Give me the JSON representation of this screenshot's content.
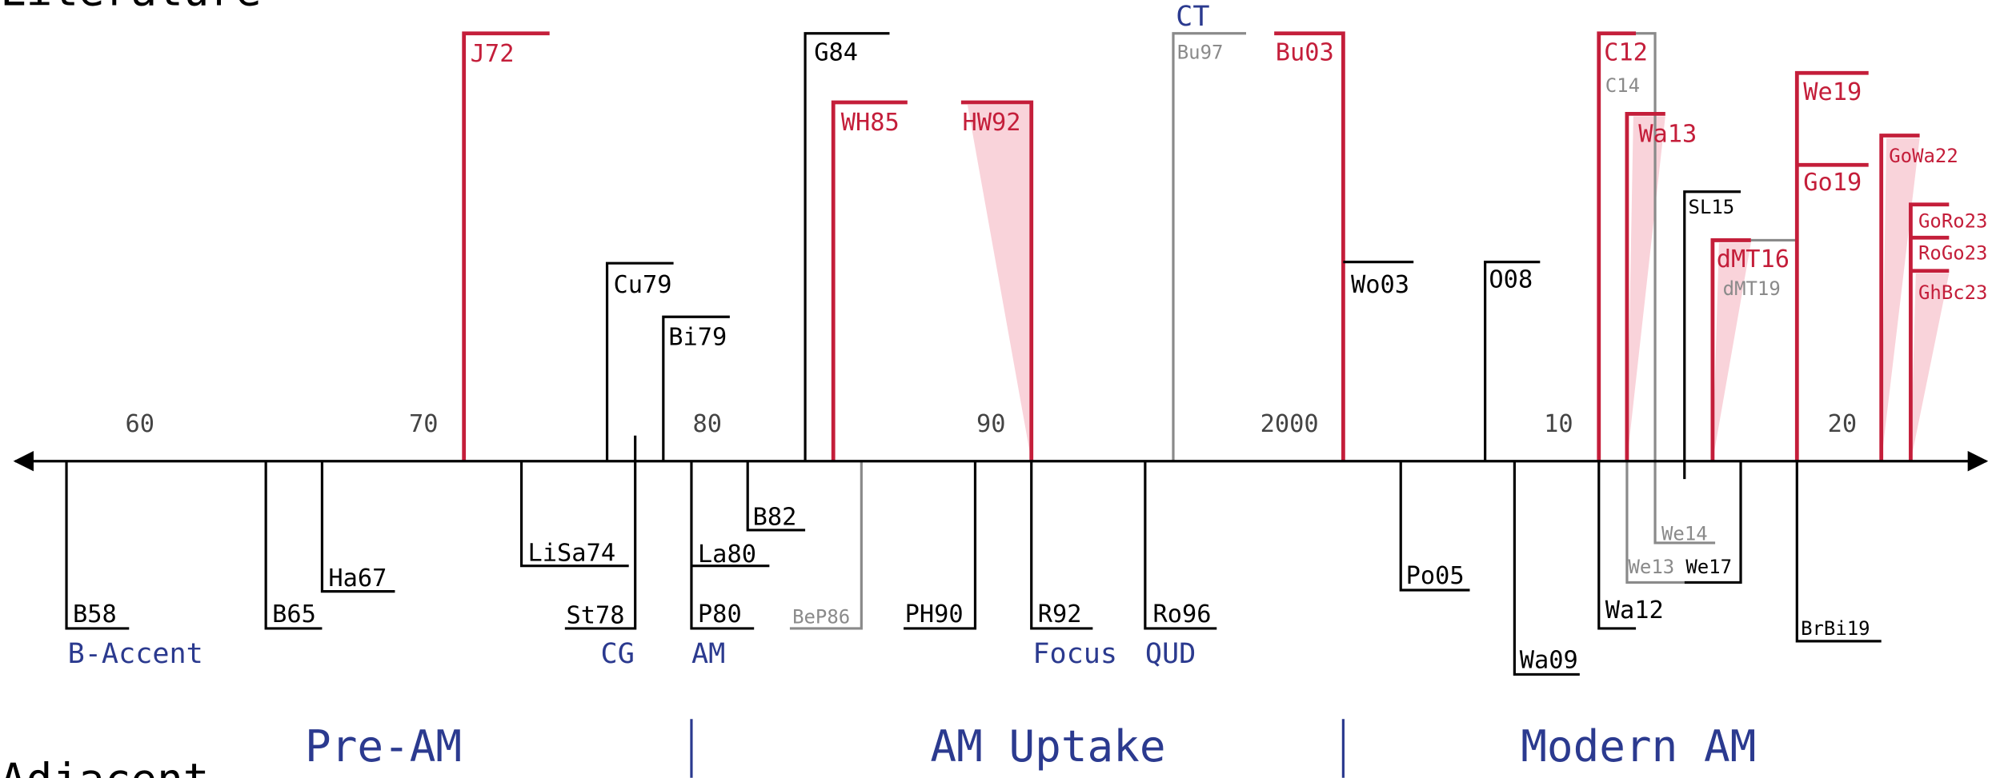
{
  "sections": {
    "top": "Literature",
    "bottom": "Adjacent"
  },
  "axis_labels": [
    "60",
    "70",
    "80",
    "90",
    "2000",
    "10",
    "20"
  ],
  "above": [
    "J72",
    "Cu79",
    "Bi79",
    "G84",
    "WH85",
    "HW92",
    "Bu97",
    "Bu03",
    "Wo03",
    "O08",
    "C12",
    "C14",
    "Wa13",
    "SL15",
    "dMT16",
    "dMT19",
    "We19",
    "Go19",
    "GoWa22",
    "GoRo23",
    "RoGo23",
    "GhBc23"
  ],
  "below": [
    "B58",
    "B65",
    "Ha67",
    "LiSa74",
    "St78",
    "P80",
    "La80",
    "B82",
    "BeP86",
    "PH90",
    "R92",
    "Ro96",
    "Po05",
    "Wa09",
    "Wa12",
    "We13",
    "We14",
    "We17",
    "BrBi19"
  ],
  "tags": [
    "B-Accent",
    "CG",
    "AM",
    "Focus",
    "QUD",
    "CT"
  ],
  "periods": [
    "Pre-AM",
    "AM Uptake",
    "Modern AM"
  ]
}
